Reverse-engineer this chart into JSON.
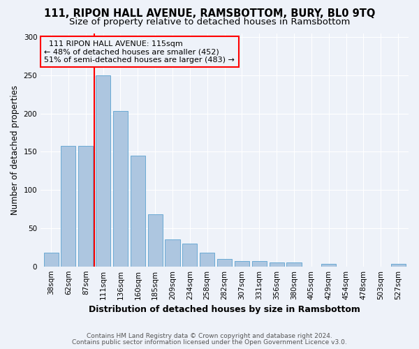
{
  "title": "111, RIPON HALL AVENUE, RAMSBOTTOM, BURY, BL0 9TQ",
  "subtitle": "Size of property relative to detached houses in Ramsbottom",
  "xlabel": "Distribution of detached houses by size in Ramsbottom",
  "ylabel": "Number of detached properties",
  "footnote1": "Contains HM Land Registry data © Crown copyright and database right 2024.",
  "footnote2": "Contains public sector information licensed under the Open Government Licence v3.0.",
  "categories": [
    "38sqm",
    "62sqm",
    "87sqm",
    "111sqm",
    "136sqm",
    "160sqm",
    "185sqm",
    "209sqm",
    "234sqm",
    "258sqm",
    "282sqm",
    "307sqm",
    "331sqm",
    "356sqm",
    "380sqm",
    "405sqm",
    "429sqm",
    "454sqm",
    "478sqm",
    "503sqm",
    "527sqm"
  ],
  "values": [
    18,
    158,
    158,
    250,
    203,
    145,
    68,
    35,
    30,
    18,
    10,
    7,
    7,
    5,
    5,
    0,
    3,
    0,
    0,
    0,
    3
  ],
  "bar_color": "#adc6e0",
  "bar_edge_color": "#6aaad4",
  "marker_index": 2.5,
  "marker_line_color": "red",
  "annotation_line1": "  111 RIPON HALL AVENUE: 115sqm",
  "annotation_line2": "← 48% of detached houses are smaller (452)",
  "annotation_line3": "51% of semi-detached houses are larger (483) →",
  "annotation_box_edge": "red",
  "ylim": [
    0,
    305
  ],
  "yticks": [
    0,
    50,
    100,
    150,
    200,
    250,
    300
  ],
  "background_color": "#eef2f9",
  "title_fontsize": 10.5,
  "subtitle_fontsize": 9.5,
  "xlabel_fontsize": 9,
  "ylabel_fontsize": 8.5,
  "tick_fontsize": 7.5,
  "footnote_fontsize": 6.5,
  "annotation_fontsize": 8
}
